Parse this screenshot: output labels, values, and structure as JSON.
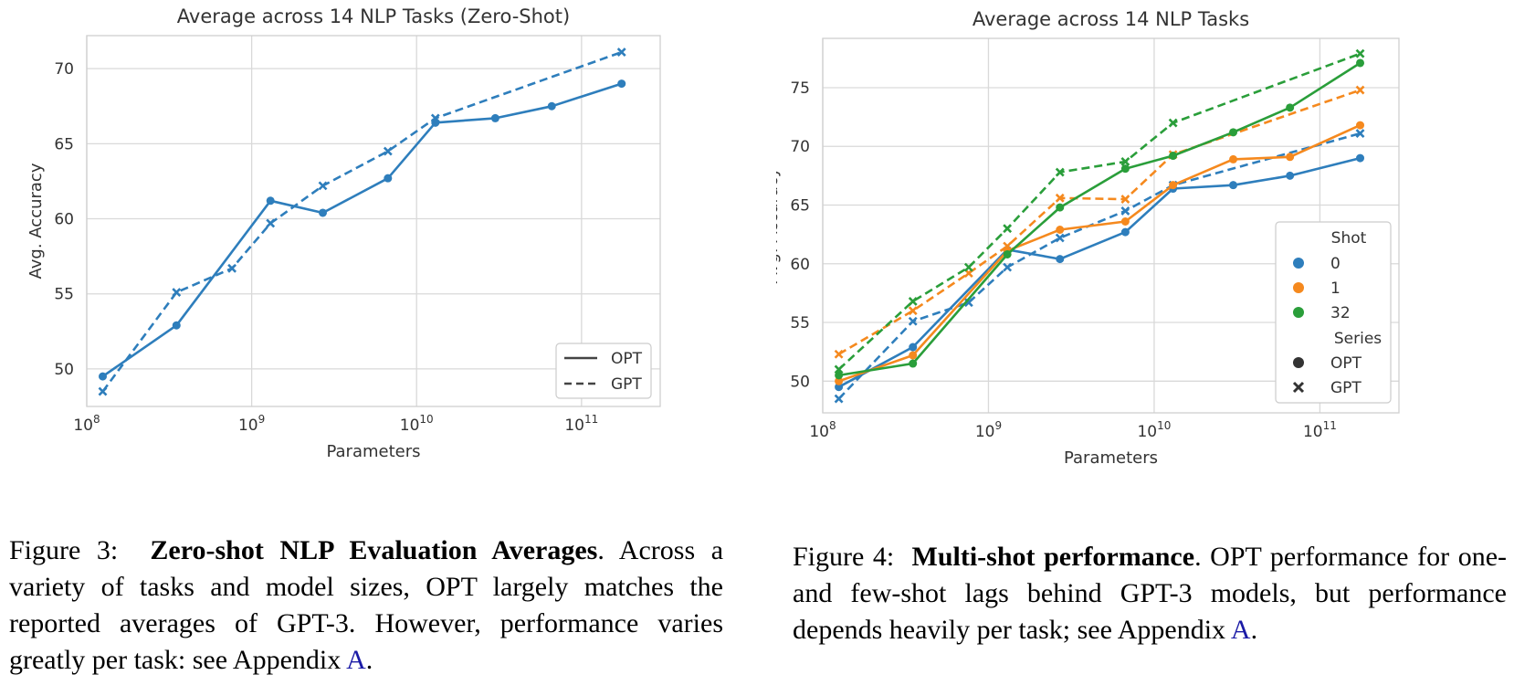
{
  "chart_data": [
    {
      "type": "line",
      "title": "Average across 14 NLP Tasks (Zero-Shot)",
      "xlabel": "Parameters",
      "ylabel": "Avg. Accuracy",
      "xscale": "log",
      "xlim": [
        100000000.0,
        300000000000.0
      ],
      "ylim": [
        47.5,
        72.2
      ],
      "x_tick_labels": [
        "10^8",
        "10^9",
        "10^10",
        "10^11"
      ],
      "y_ticks": [
        50,
        55,
        60,
        65,
        70
      ],
      "grid": true,
      "legend": {
        "placement": "lower-right",
        "entries": [
          {
            "label": "OPT",
            "style": "solid"
          },
          {
            "label": "GPT",
            "style": "dashed"
          }
        ]
      },
      "series": [
        {
          "name": "OPT",
          "style": "solid",
          "marker": "circle",
          "color": "#2e7ebc",
          "x": [
            125000000.0,
            350000000.0,
            1300000000.0,
            2700000000.0,
            6700000000.0,
            13000000000.0,
            30000000000.0,
            66000000000.0,
            175000000000.0
          ],
          "y": [
            49.5,
            52.9,
            61.2,
            60.4,
            62.7,
            66.4,
            66.7,
            67.5,
            69.0
          ]
        },
        {
          "name": "GPT",
          "style": "dashed",
          "marker": "x",
          "color": "#2e7ebc",
          "x": [
            125000000.0,
            350000000.0,
            760000000.0,
            1300000000.0,
            2700000000.0,
            6700000000.0,
            13000000000.0,
            175000000000.0
          ],
          "y": [
            48.5,
            55.1,
            56.7,
            59.7,
            62.2,
            64.5,
            66.7,
            71.1
          ]
        }
      ]
    },
    {
      "type": "line",
      "title": "Average across 14 NLP Tasks",
      "xlabel": "Parameters",
      "ylabel": "Avg. Accuracy",
      "xscale": "log",
      "xlim": [
        100000000.0,
        300000000000.0
      ],
      "ylim": [
        47.3,
        79.2
      ],
      "x_tick_labels": [
        "10^8",
        "10^9",
        "10^10",
        "10^11"
      ],
      "y_ticks": [
        50,
        55,
        60,
        65,
        70,
        75
      ],
      "grid": true,
      "legend": {
        "placement": "lower-right",
        "shot_title": "Shot",
        "shot_entries": [
          {
            "label": "0",
            "color": "#2e7ebc"
          },
          {
            "label": "1",
            "color": "#f5891e"
          },
          {
            "label": "32",
            "color": "#2a9e3a"
          }
        ],
        "series_title": "Series",
        "series_entries": [
          {
            "label": "OPT",
            "marker": "circle"
          },
          {
            "label": "GPT",
            "marker": "x"
          }
        ]
      },
      "series": [
        {
          "name": "OPT",
          "shot": "0",
          "style": "solid",
          "marker": "circle",
          "color": "#2e7ebc",
          "x": [
            125000000.0,
            350000000.0,
            1300000000.0,
            2700000000.0,
            6700000000.0,
            13000000000.0,
            30000000000.0,
            66000000000.0,
            175000000000.0
          ],
          "y": [
            49.5,
            52.9,
            61.2,
            60.4,
            62.7,
            66.4,
            66.7,
            67.5,
            69.0
          ]
        },
        {
          "name": "GPT",
          "shot": "0",
          "style": "dashed",
          "marker": "x",
          "color": "#2e7ebc",
          "x": [
            125000000.0,
            350000000.0,
            760000000.0,
            1300000000.0,
            2700000000.0,
            6700000000.0,
            13000000000.0,
            175000000000.0
          ],
          "y": [
            48.5,
            55.1,
            56.7,
            59.7,
            62.2,
            64.5,
            66.7,
            71.1
          ]
        },
        {
          "name": "OPT",
          "shot": "1",
          "style": "solid",
          "marker": "circle",
          "color": "#f5891e",
          "x": [
            125000000.0,
            350000000.0,
            1300000000.0,
            2700000000.0,
            6700000000.0,
            13000000000.0,
            30000000000.0,
            66000000000.0,
            175000000000.0
          ],
          "y": [
            50.0,
            52.2,
            61.1,
            62.9,
            63.6,
            66.7,
            68.9,
            69.1,
            71.8
          ]
        },
        {
          "name": "GPT",
          "shot": "1",
          "style": "dashed",
          "marker": "x",
          "color": "#f5891e",
          "x": [
            125000000.0,
            350000000.0,
            760000000.0,
            1300000000.0,
            2700000000.0,
            6700000000.0,
            13000000000.0,
            175000000000.0
          ],
          "y": [
            52.3,
            56.0,
            59.2,
            61.5,
            65.6,
            65.5,
            69.3,
            74.8
          ]
        },
        {
          "name": "OPT",
          "shot": "32",
          "style": "solid",
          "marker": "circle",
          "color": "#2a9e3a",
          "x": [
            125000000.0,
            350000000.0,
            1300000000.0,
            2700000000.0,
            6700000000.0,
            13000000000.0,
            30000000000.0,
            66000000000.0,
            175000000000.0
          ],
          "y": [
            50.5,
            51.5,
            60.8,
            64.8,
            68.1,
            69.2,
            71.2,
            73.3,
            77.1
          ]
        },
        {
          "name": "GPT",
          "shot": "32",
          "style": "dashed",
          "marker": "x",
          "color": "#2a9e3a",
          "x": [
            125000000.0,
            350000000.0,
            760000000.0,
            1300000000.0,
            2700000000.0,
            6700000000.0,
            13000000000.0,
            175000000000.0
          ],
          "y": [
            51.0,
            56.8,
            59.7,
            63.0,
            67.8,
            68.7,
            72.0,
            77.9
          ]
        }
      ]
    }
  ],
  "captions": {
    "left": {
      "label": "Figure 3:",
      "bold": "Zero-shot NLP Evaluation Averages",
      "text1": ". Across a variety of tasks and model sizes, OPT largely matches the reported averages of GPT-3. However, performance varies greatly per task: see Appendix ",
      "ref": "A",
      "text2": "."
    },
    "right": {
      "label": "Figure 4:",
      "bold": "Multi-shot performance",
      "text1": ". OPT performance for one- and few-shot lags behind GPT-3 models, but performance depends heavily per task; see Appendix ",
      "ref": "A",
      "text2": "."
    }
  }
}
